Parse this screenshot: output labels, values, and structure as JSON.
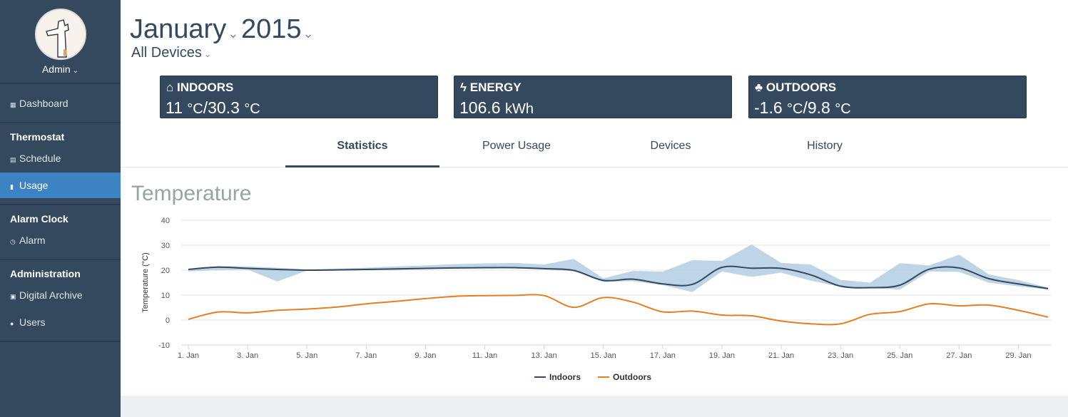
{
  "sidebar": {
    "user_label": "Admin",
    "items": [
      {
        "label": "Dashboard",
        "icon": "dashboard-icon"
      },
      {
        "section": "Thermostat"
      },
      {
        "label": "Schedule",
        "icon": "calendar-icon"
      },
      {
        "label": "Usage",
        "icon": "bar-chart-icon",
        "active": true
      },
      {
        "section": "Alarm Clock"
      },
      {
        "label": "Alarm",
        "icon": "clock-icon"
      },
      {
        "section": "Administration"
      },
      {
        "label": "Digital Archive",
        "icon": "briefcase-icon"
      },
      {
        "label": "Users",
        "icon": "user-icon"
      }
    ]
  },
  "header": {
    "month": "January",
    "year": "2015",
    "devices": "All Devices"
  },
  "stats": [
    {
      "label": "INDOORS",
      "icon": "home-icon",
      "value_a": "11",
      "unit_a": "°C",
      "value_b": "30.3",
      "unit_b": "°C"
    },
    {
      "label": "ENERGY",
      "icon": "bolt-icon",
      "value_a": "106.6",
      "unit_a": "kWh"
    },
    {
      "label": "OUTDOORS",
      "icon": "tree-icon",
      "value_a": "-1.6",
      "unit_a": "°C",
      "value_b": "9.8",
      "unit_b": "°C"
    }
  ],
  "tabs": [
    {
      "label": "Statistics",
      "active": true
    },
    {
      "label": "Power Usage"
    },
    {
      "label": "Devices"
    },
    {
      "label": "History"
    }
  ],
  "chart_title": "Temperature",
  "colors": {
    "sidebar": "#34495e",
    "active": "#3c83c4",
    "indoors": "#34495e",
    "outdoors": "#e67e22",
    "range": "#b3cde3"
  },
  "chart_data": {
    "type": "line",
    "title": "Temperature",
    "ylabel": "Temperature (°C)",
    "ylim": [
      -10,
      40
    ],
    "yticks": [
      -10,
      0,
      10,
      20,
      30,
      40
    ],
    "xticks": [
      "1. Jan",
      "3. Jan",
      "5. Jan",
      "7. Jan",
      "9. Jan",
      "11. Jan",
      "13. Jan",
      "15. Jan",
      "17. Jan",
      "19. Jan",
      "21. Jan",
      "23. Jan",
      "25. Jan",
      "27. Jan",
      "29. Jan"
    ],
    "x": [
      1,
      2,
      3,
      4,
      5,
      6,
      7,
      8,
      9,
      10,
      11,
      12,
      13,
      14,
      15,
      16,
      17,
      18,
      19,
      20,
      21,
      22,
      23,
      24,
      25,
      26,
      27,
      28,
      29,
      30
    ],
    "grid": true,
    "legend": "bottom",
    "series": [
      {
        "name": "Indoors",
        "values": [
          20.3,
          21.2,
          20.7,
          20.3,
          20.0,
          20.1,
          20.3,
          20.5,
          20.7,
          20.9,
          21.0,
          21.0,
          20.6,
          19.9,
          15.9,
          16.4,
          14.5,
          14.3,
          21.1,
          20.8,
          20.7,
          18.1,
          13.6,
          13.0,
          14.0,
          20.4,
          20.9,
          16.6,
          14.5,
          12.6
        ]
      },
      {
        "name": "Outdoors",
        "values": [
          0.3,
          3.2,
          2.9,
          3.9,
          4.4,
          5.2,
          6.5,
          7.5,
          8.6,
          9.5,
          9.8,
          9.9,
          9.8,
          5.1,
          9.0,
          7.2,
          3.3,
          3.6,
          2.0,
          1.7,
          -0.4,
          -1.5,
          -1.5,
          2.3,
          3.4,
          6.5,
          5.7,
          6.0,
          3.9,
          1.2
        ]
      }
    ],
    "indoors_range": {
      "low": [
        19.5,
        20.0,
        20.2,
        15.5,
        19.8,
        19.9,
        20.0,
        20.1,
        20.4,
        20.6,
        20.7,
        20.7,
        20.3,
        19.6,
        15.3,
        15.6,
        14.0,
        11.2,
        19.5,
        17.3,
        19.0,
        15.8,
        13.3,
        12.9,
        12.2,
        19.5,
        19.3,
        15.0,
        13.5,
        12.2
      ],
      "high": [
        20.6,
        21.6,
        21.5,
        21.0,
        20.2,
        20.6,
        21.0,
        21.5,
        21.9,
        22.4,
        22.7,
        22.9,
        22.3,
        24.5,
        16.7,
        19.7,
        19.4,
        24.0,
        23.7,
        30.3,
        22.9,
        22.2,
        16.1,
        15.0,
        22.8,
        21.9,
        26.2,
        18.3,
        16.0,
        13.0
      ]
    }
  }
}
